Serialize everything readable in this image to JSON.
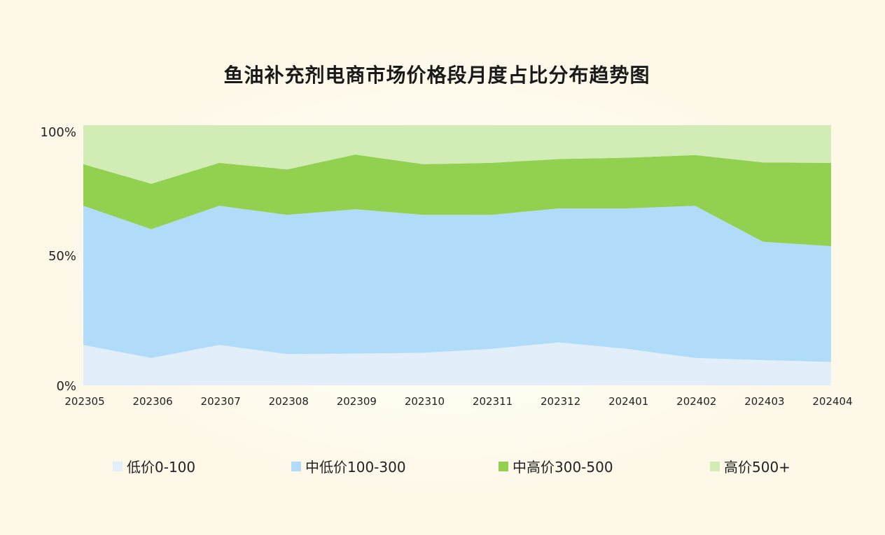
{
  "chart_data": {
    "type": "area",
    "stacked": true,
    "normalized": true,
    "title": "鱼油补充剂电商市场价格段月度占比分布趋势图",
    "categories": [
      "202305",
      "202306",
      "202307",
      "202308",
      "202309",
      "202310",
      "202311",
      "202312",
      "202401",
      "202402",
      "202403",
      "202404"
    ],
    "y_ticks": [
      "0%",
      "50%",
      "100%"
    ],
    "ylim": [
      0,
      100
    ],
    "grid": false,
    "legend_position": "bottom",
    "series": [
      {
        "name": "低价0-100",
        "color": "#e2effb",
        "values": [
          15.5,
          10.5,
          15.5,
          12,
          12.2,
          12.5,
          14,
          16.5,
          14,
          10.5,
          9.7,
          9
        ]
      },
      {
        "name": "中低价100-300",
        "color": "#b0dcfa",
        "values": [
          53.5,
          49.5,
          53.5,
          53.5,
          55.5,
          53,
          51.5,
          51.5,
          54,
          58.5,
          45.5,
          44.5
        ]
      },
      {
        "name": "中高价300-500",
        "color": "#92d050",
        "values": [
          16,
          17.5,
          16.5,
          17.5,
          21,
          19.5,
          20,
          19,
          19.5,
          19.5,
          30.5,
          32
        ]
      },
      {
        "name": "高价500+",
        "color": "#d1ecb5",
        "values": [
          15,
          22.5,
          14.5,
          17,
          11.3,
          15,
          14.5,
          13,
          12.5,
          11.5,
          14.3,
          14.5
        ]
      }
    ]
  }
}
